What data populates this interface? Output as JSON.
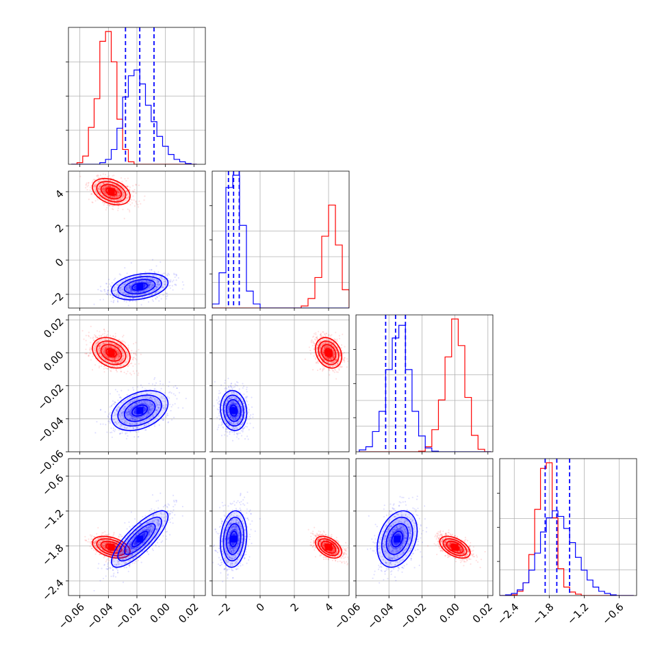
{
  "colors": {
    "red": "#ff0000",
    "blue": "#0000ff",
    "grid": "#b0b0b0"
  },
  "chart_data": {
    "type": "corner",
    "grid": true,
    "parameters": [
      {
        "range": [
          -0.068,
          0.028
        ],
        "ticks": [
          -0.06,
          -0.04,
          -0.02,
          0.0,
          0.02
        ],
        "tick_labels": [
          "−0.06",
          "−0.04",
          "−0.02",
          "0.00",
          "0.02"
        ]
      },
      {
        "range": [
          -2.8,
          5.2
        ],
        "ticks": [
          -2,
          0,
          2,
          4
        ],
        "tick_labels": [
          "−2",
          "0",
          "2",
          "4"
        ]
      },
      {
        "range": [
          -0.06,
          0.023
        ],
        "ticks": [
          -0.06,
          -0.04,
          -0.02,
          0.0,
          0.02
        ],
        "tick_labels": [
          "−0.06",
          "−0.04",
          "−0.02",
          "0.00",
          "0.02"
        ]
      },
      {
        "range": [
          -2.65,
          -0.3
        ],
        "ticks": [
          -2.4,
          -1.8,
          -1.2,
          -0.6
        ],
        "tick_labels": [
          "−2.4",
          "−1.8",
          "−1.2",
          "−0.6"
        ]
      }
    ],
    "series": [
      {
        "color": "#ff0000",
        "mean": [
          -0.038,
          4.0,
          0.0,
          -1.82
        ],
        "std": [
          0.006,
          0.35,
          0.0042,
          0.085
        ]
      },
      {
        "color": "#0000ff",
        "mean": [
          -0.018,
          -1.55,
          -0.035,
          -1.68
        ],
        "std": [
          0.009,
          0.35,
          0.0055,
          0.22
        ]
      }
    ],
    "quantile_lines": {
      "color": "#0000ff",
      "values": [
        [
          -0.028,
          -0.018,
          -0.008
        ],
        [
          -1.85,
          -1.55,
          -1.22
        ],
        [
          -0.042,
          -0.036,
          -0.03
        ],
        [
          -1.87,
          -1.67,
          -1.45
        ]
      ]
    },
    "histograms": [
      {
        "bins": [
          -0.066,
          -0.062,
          -0.058,
          -0.054,
          -0.05,
          -0.046,
          -0.042,
          -0.038,
          -0.034,
          -0.03,
          -0.026,
          -0.022,
          -0.018,
          -0.014,
          -0.01,
          -0.006,
          -0.002,
          0.002,
          0.006,
          0.01,
          0.014,
          0.018,
          0.022
        ],
        "red": [
          0,
          2,
          10,
          45,
          80,
          150,
          162,
          125,
          55,
          18,
          3,
          0,
          0,
          0,
          0,
          0,
          0,
          0,
          0,
          0,
          0,
          0
        ],
        "blue": [
          0,
          0,
          0,
          0,
          0,
          2,
          6,
          18,
          44,
          82,
          108,
          115,
          98,
          72,
          52,
          34,
          22,
          12,
          6,
          3,
          1,
          0
        ]
      },
      {
        "bins": [
          -2.8,
          -2.4,
          -2.0,
          -1.6,
          -1.2,
          -0.8,
          -0.4,
          0.0,
          0.4,
          0.8,
          1.2,
          1.6,
          2.0,
          2.4,
          2.8,
          3.2,
          3.6,
          4.0,
          4.4,
          4.8,
          5.2
        ],
        "red": [
          0,
          0,
          0,
          0,
          0,
          0,
          0,
          0,
          0,
          0,
          0,
          0,
          0,
          3,
          14,
          45,
          106,
          152,
          93,
          27
        ],
        "blue": [
          6,
          52,
          178,
          196,
          122,
          25,
          6,
          0,
          0,
          0,
          0,
          0,
          0,
          0,
          0,
          0,
          0,
          0,
          0,
          0
        ]
      },
      {
        "bins": [
          -0.058,
          -0.054,
          -0.05,
          -0.046,
          -0.042,
          -0.038,
          -0.034,
          -0.03,
          -0.026,
          -0.022,
          -0.018,
          -0.014,
          -0.01,
          -0.006,
          -0.002,
          0.002,
          0.006,
          0.01,
          0.014,
          0.018,
          0.022
        ],
        "red": [
          0,
          0,
          0,
          0,
          0,
          0,
          0,
          0,
          0,
          1,
          8,
          35,
          82,
          150,
          210,
          168,
          86,
          26,
          4,
          0
        ],
        "blue": [
          3,
          8,
          32,
          64,
          130,
          180,
          200,
          130,
          64,
          25,
          6,
          1,
          0,
          0,
          0,
          0,
          0,
          0,
          0,
          0
        ]
      },
      {
        "bins": [
          -2.65,
          -2.55,
          -2.45,
          -2.35,
          -2.25,
          -2.15,
          -2.05,
          -1.95,
          -1.85,
          -1.75,
          -1.65,
          -1.55,
          -1.45,
          -1.35,
          -1.25,
          -1.15,
          -1.05,
          -0.95,
          -0.85,
          -0.75,
          -0.65,
          -0.55,
          -0.45,
          -0.35
        ],
        "red": [
          0,
          0,
          1,
          6,
          18,
          58,
          122,
          180,
          188,
          110,
          38,
          12,
          5,
          2,
          0,
          0,
          0,
          0,
          0,
          0,
          0,
          0,
          0
        ],
        "blue": [
          0,
          1,
          3,
          8,
          18,
          36,
          60,
          90,
          110,
          120,
          112,
          95,
          75,
          54,
          36,
          22,
          12,
          6,
          3,
          1,
          0,
          0,
          0
        ]
      }
    ]
  }
}
